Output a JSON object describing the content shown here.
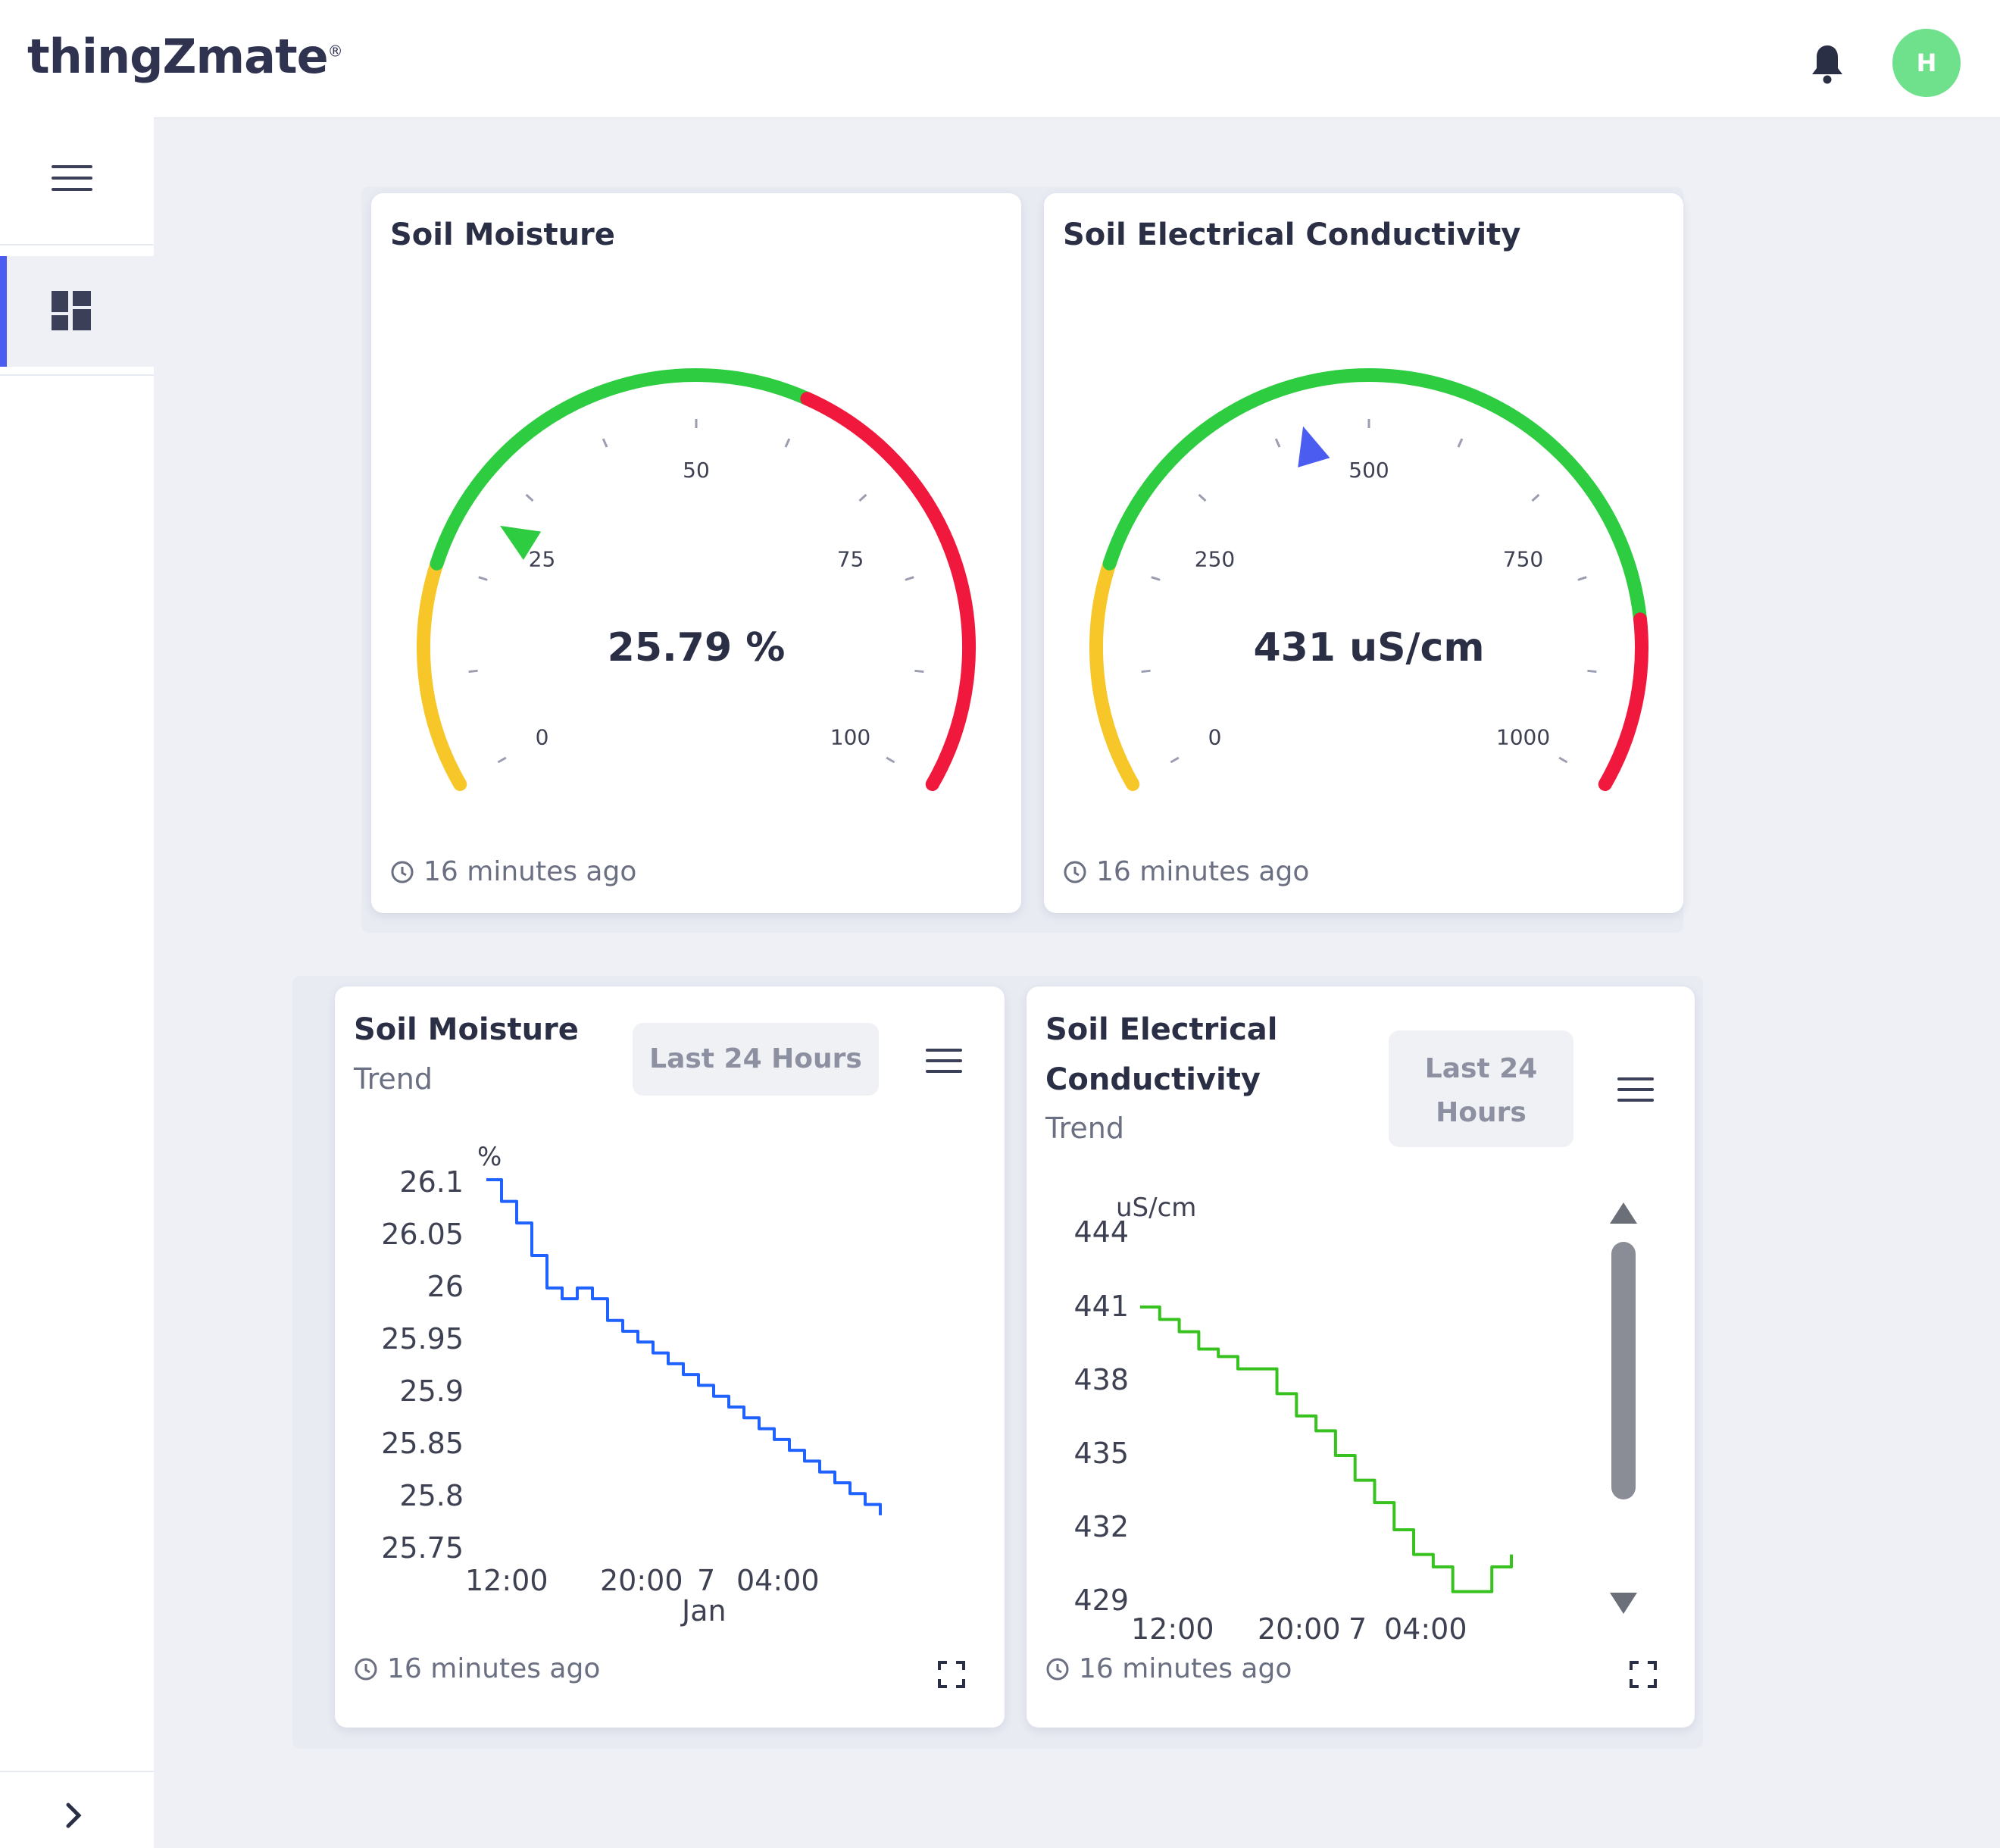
{
  "header": {
    "logo_text": "thingZmate",
    "logo_mark": "®",
    "avatar_initial": "H",
    "avatar_color": "#6fe08b",
    "icons": [
      "bell-icon"
    ]
  },
  "sidebar": {
    "icons": [
      "menu-icon",
      "dashboard-icon",
      "chevron-right-icon"
    ],
    "active_accent": "#4b5cf0"
  },
  "gauges": [
    {
      "title": "Soil Moisture",
      "value_text": "25.79 %",
      "value": 25.79,
      "min": 0,
      "max": 100,
      "tick_labels": [
        "0",
        "25",
        "50",
        "75",
        "100"
      ],
      "updated": "16 minutes ago",
      "pointer_color": "#2ecc40",
      "bands": [
        {
          "from": 0,
          "to": 20,
          "color": "#f7c72a"
        },
        {
          "from": 20,
          "to": 60,
          "color": "#2ecc40"
        },
        {
          "from": 60,
          "to": 100,
          "color": "#f0183c"
        }
      ]
    },
    {
      "title": "Soil Electrical Conductivity",
      "value_text": "431 uS/cm",
      "value": 431,
      "min": 0,
      "max": 1000,
      "tick_labels": [
        "0",
        "250",
        "500",
        "750",
        "1000"
      ],
      "updated": "16 minutes ago",
      "pointer_color": "#4b5cf0",
      "bands": [
        {
          "from": 0,
          "to": 200,
          "color": "#f7c72a"
        },
        {
          "from": 200,
          "to": 850,
          "color": "#2ecc40"
        },
        {
          "from": 850,
          "to": 1000,
          "color": "#f0183c"
        }
      ]
    }
  ],
  "trends": [
    {
      "title": "Soil Moisture",
      "subtitle": "Trend",
      "range_label": "Last 24 Hours",
      "updated": "16 minutes ago",
      "unit": "%",
      "y_ticks": [
        "26.1",
        "26.05",
        "26",
        "25.95",
        "25.9",
        "25.85",
        "25.8",
        "25.75"
      ],
      "x_ticks": [
        "12:00",
        "20:00",
        "7",
        "04:00"
      ],
      "x_sub": "Jan",
      "line_color": "#1f62ff"
    },
    {
      "title_line1": "Soil Electrical",
      "title_line2": "Conductivity",
      "subtitle": "Trend",
      "range_line1": "Last 24",
      "range_line2": "Hours",
      "updated": "16 minutes ago",
      "unit": "uS/cm",
      "y_ticks": [
        "444",
        "441",
        "438",
        "435",
        "432",
        "429"
      ],
      "x_ticks": [
        "12:00",
        "20:00",
        "7",
        "04:00"
      ],
      "line_color": "#38c21f"
    }
  ],
  "chart_data": [
    {
      "type": "line",
      "title": "Soil Moisture",
      "ylabel": "%",
      "ylim": [
        25.75,
        26.1
      ],
      "x_tick_labels": [
        "12:00",
        "20:00",
        "7 Jan",
        "04:00"
      ],
      "series": [
        {
          "values": [
            26.1,
            26.08,
            26.06,
            26.03,
            26.0,
            25.99,
            26.0,
            25.99,
            25.97,
            25.96,
            25.95,
            25.94,
            25.93,
            25.92,
            25.91,
            25.9,
            25.89,
            25.88,
            25.87,
            25.86,
            25.85,
            25.84,
            25.83,
            25.82,
            25.81,
            25.8,
            25.79
          ]
        }
      ]
    },
    {
      "type": "line",
      "title": "Soil Electrical Conductivity",
      "ylabel": "uS/cm",
      "ylim": [
        429,
        444
      ],
      "x_tick_labels": [
        "12:00",
        "20:00",
        "7",
        "04:00"
      ],
      "series": [
        {
          "values": [
            441.0,
            440.5,
            440.0,
            439.3,
            439.0,
            438.5,
            438.5,
            437.5,
            436.6,
            436.0,
            435.0,
            434.0,
            433.1,
            432.0,
            431.0,
            430.5,
            429.5,
            429.5,
            430.5,
            431.0
          ]
        }
      ]
    }
  ]
}
